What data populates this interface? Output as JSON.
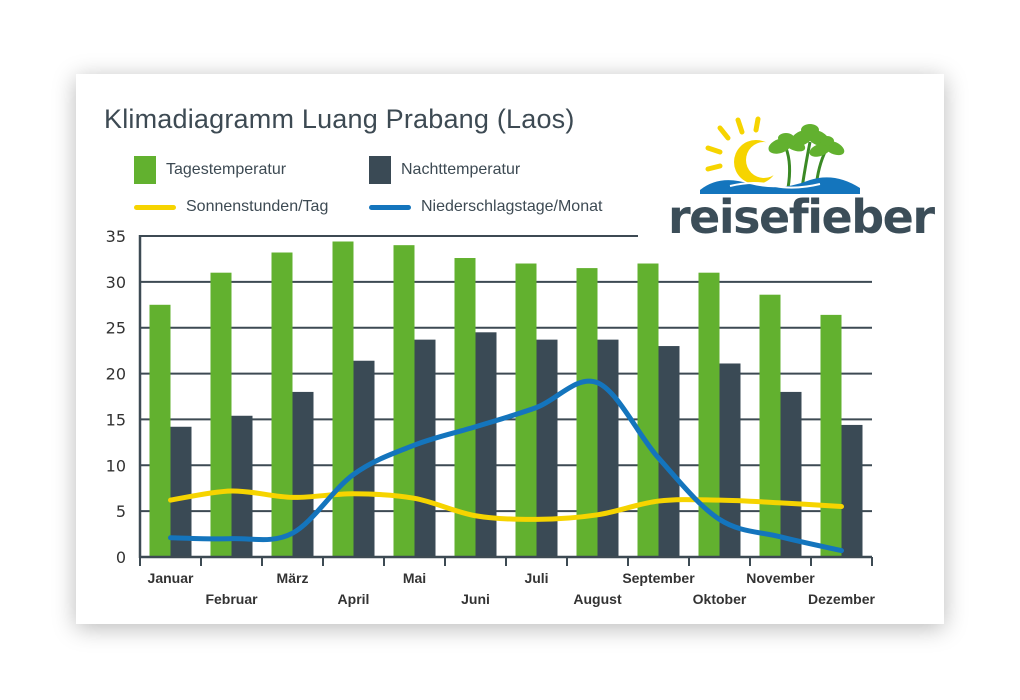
{
  "chart_data": {
    "type": "bar",
    "title": "Klimadiagramm Luang Prabang (Laos)",
    "categories": [
      "Januar",
      "Februar",
      "März",
      "April",
      "Mai",
      "Juni",
      "Juli",
      "August",
      "September",
      "Oktober",
      "November",
      "Dezember"
    ],
    "series": [
      {
        "name": "Tagestemperatur",
        "kind": "bar",
        "color": "#62b12f",
        "values": [
          27.5,
          31,
          33.2,
          34.4,
          34,
          32.6,
          32,
          31.5,
          32,
          31,
          28.6,
          26.4
        ]
      },
      {
        "name": "Nachttemperatur",
        "kind": "bar",
        "color": "#3a4a55",
        "values": [
          14.2,
          15.4,
          18,
          21.4,
          23.7,
          24.5,
          23.7,
          23.7,
          23,
          21.1,
          18,
          14.4
        ]
      },
      {
        "name": "Sonnenstunden/Tag",
        "kind": "line",
        "color": "#f6d400",
        "values": [
          6.2,
          7.2,
          6.5,
          6.9,
          6.4,
          4.5,
          4.1,
          4.6,
          6.1,
          6.2,
          5.9,
          5.5
        ]
      },
      {
        "name": "Niederschlagstage/Monat",
        "kind": "line",
        "color": "#1475bd",
        "values": [
          2.1,
          2,
          2.6,
          9,
          12.2,
          14.2,
          16.3,
          19,
          10.8,
          4.1,
          2.2,
          0.7
        ]
      }
    ],
    "ylim": [
      0,
      35
    ],
    "yticks": [
      0,
      5,
      10,
      15,
      20,
      25,
      30,
      35
    ],
    "grid": true,
    "legend": "top-left"
  },
  "logo": {
    "text": "reisefieber",
    "sun_color": "#f6d400",
    "palm_color": "#62b12f",
    "wave_color": "#1475bd"
  }
}
